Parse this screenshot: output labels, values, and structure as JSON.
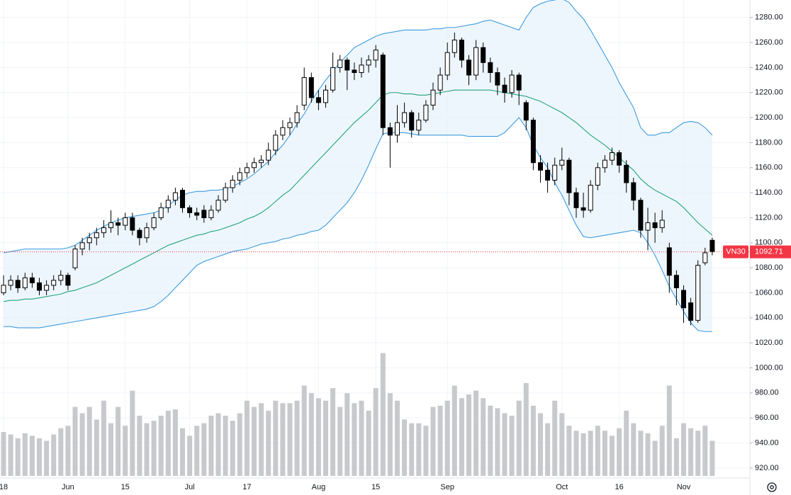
{
  "chart_data": {
    "type": "candlestick",
    "categories": [
      "18",
      null,
      null,
      null,
      null,
      null,
      null,
      null,
      null,
      "Jun",
      null,
      null,
      null,
      null,
      null,
      null,
      null,
      "15",
      null,
      null,
      null,
      null,
      null,
      null,
      null,
      null,
      "Jul",
      null,
      null,
      null,
      null,
      null,
      null,
      null,
      "17",
      null,
      null,
      null,
      null,
      null,
      null,
      null,
      null,
      null,
      "Aug",
      null,
      null,
      null,
      null,
      null,
      null,
      null,
      "15",
      null,
      null,
      null,
      null,
      null,
      null,
      null,
      null,
      null,
      "Sep",
      null,
      null,
      null,
      null,
      null,
      null,
      null,
      null,
      null,
      null,
      null,
      null,
      null,
      null,
      null,
      "Oct",
      null,
      null,
      null,
      null,
      null,
      null,
      null,
      "16",
      null,
      null,
      null,
      null,
      null,
      null,
      null,
      null,
      "Nov",
      null,
      null,
      null,
      null
    ],
    "ohlc": [
      [
        1060,
        1074,
        1058,
        1066
      ],
      [
        1066,
        1074,
        1062,
        1070
      ],
      [
        1070,
        1074,
        1060,
        1064
      ],
      [
        1064,
        1076,
        1062,
        1072
      ],
      [
        1072,
        1076,
        1064,
        1068
      ],
      [
        1068,
        1072,
        1058,
        1062
      ],
      [
        1062,
        1070,
        1058,
        1066
      ],
      [
        1066,
        1074,
        1062,
        1070
      ],
      [
        1070,
        1078,
        1066,
        1074
      ],
      [
        1074,
        1076,
        1062,
        1066
      ],
      [
        1080,
        1098,
        1078,
        1095
      ],
      [
        1095,
        1104,
        1090,
        1100
      ],
      [
        1100,
        1108,
        1094,
        1104
      ],
      [
        1104,
        1112,
        1098,
        1108
      ],
      [
        1108,
        1118,
        1104,
        1112
      ],
      [
        1112,
        1126,
        1108,
        1116
      ],
      [
        1116,
        1120,
        1106,
        1114
      ],
      [
        1114,
        1124,
        1110,
        1120
      ],
      [
        1120,
        1124,
        1106,
        1110
      ],
      [
        1110,
        1112,
        1098,
        1104
      ],
      [
        1104,
        1116,
        1100,
        1112
      ],
      [
        1112,
        1124,
        1110,
        1120
      ],
      [
        1120,
        1132,
        1118,
        1128
      ],
      [
        1128,
        1138,
        1124,
        1134
      ],
      [
        1134,
        1144,
        1130,
        1140
      ],
      [
        1142,
        1144,
        1124,
        1128
      ],
      [
        1128,
        1130,
        1120,
        1124
      ],
      [
        1124,
        1128,
        1118,
        1122
      ],
      [
        1126,
        1130,
        1116,
        1120
      ],
      [
        1120,
        1130,
        1118,
        1126
      ],
      [
        1126,
        1138,
        1124,
        1134
      ],
      [
        1134,
        1148,
        1132,
        1144
      ],
      [
        1144,
        1154,
        1140,
        1150
      ],
      [
        1150,
        1160,
        1146,
        1156
      ],
      [
        1156,
        1164,
        1152,
        1160
      ],
      [
        1160,
        1168,
        1156,
        1164
      ],
      [
        1164,
        1170,
        1160,
        1166
      ],
      [
        1166,
        1180,
        1162,
        1174
      ],
      [
        1174,
        1190,
        1170,
        1186
      ],
      [
        1186,
        1198,
        1182,
        1192
      ],
      [
        1192,
        1200,
        1186,
        1196
      ],
      [
        1196,
        1210,
        1192,
        1204
      ],
      [
        1210,
        1240,
        1206,
        1232
      ],
      [
        1232,
        1236,
        1212,
        1216
      ],
      [
        1216,
        1222,
        1206,
        1212
      ],
      [
        1212,
        1226,
        1208,
        1222
      ],
      [
        1222,
        1252,
        1220,
        1240
      ],
      [
        1240,
        1250,
        1236,
        1246
      ],
      [
        1246,
        1248,
        1222,
        1238
      ],
      [
        1238,
        1244,
        1230,
        1236
      ],
      [
        1236,
        1248,
        1232,
        1242
      ],
      [
        1242,
        1250,
        1236,
        1246
      ],
      [
        1246,
        1258,
        1240,
        1254
      ],
      [
        1250,
        1252,
        1186,
        1192
      ],
      [
        1192,
        1196,
        1160,
        1186
      ],
      [
        1186,
        1210,
        1180,
        1196
      ],
      [
        1196,
        1212,
        1192,
        1204
      ],
      [
        1204,
        1206,
        1184,
        1190
      ],
      [
        1190,
        1204,
        1186,
        1198
      ],
      [
        1198,
        1214,
        1196,
        1210
      ],
      [
        1210,
        1228,
        1206,
        1222
      ],
      [
        1222,
        1240,
        1218,
        1234
      ],
      [
        1234,
        1260,
        1230,
        1252
      ],
      [
        1252,
        1268,
        1248,
        1262
      ],
      [
        1262,
        1264,
        1240,
        1246
      ],
      [
        1246,
        1250,
        1226,
        1234
      ],
      [
        1234,
        1262,
        1230,
        1256
      ],
      [
        1256,
        1260,
        1236,
        1244
      ],
      [
        1244,
        1248,
        1228,
        1236
      ],
      [
        1236,
        1240,
        1218,
        1226
      ],
      [
        1226,
        1232,
        1212,
        1220
      ],
      [
        1220,
        1238,
        1216,
        1234
      ],
      [
        1234,
        1236,
        1210,
        1222
      ],
      [
        1212,
        1214,
        1190,
        1198
      ],
      [
        1198,
        1200,
        1158,
        1164
      ],
      [
        1164,
        1170,
        1148,
        1158
      ],
      [
        1158,
        1164,
        1140,
        1150
      ],
      [
        1150,
        1168,
        1146,
        1162
      ],
      [
        1162,
        1176,
        1158,
        1166
      ],
      [
        1166,
        1168,
        1130,
        1140
      ],
      [
        1140,
        1144,
        1120,
        1128
      ],
      [
        1128,
        1140,
        1120,
        1126
      ],
      [
        1126,
        1150,
        1124,
        1146
      ],
      [
        1146,
        1164,
        1142,
        1160
      ],
      [
        1160,
        1170,
        1156,
        1166
      ],
      [
        1166,
        1176,
        1162,
        1172
      ],
      [
        1172,
        1174,
        1156,
        1162
      ],
      [
        1162,
        1166,
        1140,
        1148
      ],
      [
        1148,
        1152,
        1126,
        1134
      ],
      [
        1134,
        1136,
        1104,
        1110
      ],
      [
        1110,
        1128,
        1094,
        1116
      ],
      [
        1116,
        1124,
        1100,
        1112
      ],
      [
        1112,
        1126,
        1108,
        1118
      ],
      [
        1096,
        1100,
        1060,
        1074
      ],
      [
        1074,
        1078,
        1050,
        1064
      ],
      [
        1062,
        1066,
        1036,
        1048
      ],
      [
        1052,
        1056,
        1034,
        1038
      ],
      [
        1038,
        1086,
        1036,
        1082
      ],
      [
        1084,
        1096,
        1082,
        1092
      ],
      [
        1102,
        1104,
        1090,
        1093
      ]
    ],
    "volume": [
      35,
      33,
      30,
      34,
      32,
      30,
      28,
      33,
      38,
      40,
      55,
      50,
      55,
      45,
      60,
      42,
      55,
      40,
      68,
      48,
      42,
      44,
      48,
      52,
      53,
      38,
      32,
      40,
      42,
      48,
      50,
      48,
      44,
      50,
      60,
      55,
      58,
      52,
      60,
      58,
      58,
      60,
      72,
      66,
      62,
      60,
      70,
      55,
      66,
      58,
      60,
      52,
      70,
      98,
      66,
      60,
      45,
      42,
      42,
      40,
      55,
      56,
      60,
      72,
      62,
      65,
      68,
      62,
      56,
      54,
      50,
      48,
      60,
      74,
      56,
      50,
      42,
      60,
      50,
      40,
      36,
      34,
      36,
      40,
      36,
      32,
      38,
      52,
      42,
      36,
      34,
      28,
      40,
      72,
      30,
      42,
      38,
      36,
      40,
      28
    ],
    "volume_lim": [
      0,
      100
    ],
    "volume_color": "#c8c9cc",
    "bollinger": {
      "upper": [
        1092,
        1093,
        1094,
        1095,
        1095,
        1095,
        1095,
        1095,
        1095,
        1096,
        1098,
        1102,
        1106,
        1110,
        1113,
        1116,
        1118,
        1120,
        1121,
        1122,
        1123,
        1124,
        1126,
        1130,
        1134,
        1138,
        1140,
        1141,
        1141,
        1142,
        1142,
        1143,
        1145,
        1148,
        1151,
        1155,
        1160,
        1165,
        1172,
        1178,
        1186,
        1195,
        1203,
        1213,
        1222,
        1230,
        1237,
        1244,
        1250,
        1256,
        1259,
        1262,
        1265,
        1267,
        1268,
        1269,
        1270,
        1270,
        1270,
        1270,
        1271,
        1271,
        1272,
        1272,
        1273,
        1274,
        1275,
        1277,
        1278,
        1276,
        1274,
        1272,
        1270,
        1280,
        1288,
        1291,
        1293,
        1294,
        1295,
        1292,
        1285,
        1279,
        1270,
        1260,
        1250,
        1240,
        1228,
        1218,
        1208,
        1192,
        1186,
        1186,
        1188,
        1188,
        1192,
        1196,
        1197,
        1196,
        1192,
        1186
      ],
      "middle": [
        1053,
        1054,
        1054,
        1055,
        1055,
        1056,
        1057,
        1058,
        1059,
        1061,
        1062,
        1064,
        1066,
        1068,
        1071,
        1074,
        1077,
        1080,
        1083,
        1086,
        1089,
        1092,
        1095,
        1098,
        1100,
        1102,
        1104,
        1106,
        1107,
        1109,
        1110,
        1112,
        1114,
        1116,
        1119,
        1121,
        1124,
        1128,
        1133,
        1138,
        1142,
        1148,
        1154,
        1160,
        1166,
        1172,
        1178,
        1184,
        1190,
        1196,
        1201,
        1206,
        1212,
        1218,
        1220,
        1220,
        1219,
        1219,
        1218,
        1218,
        1219,
        1220,
        1221,
        1222,
        1222,
        1222,
        1222,
        1222,
        1222,
        1221,
        1220,
        1219,
        1218,
        1217,
        1215,
        1213,
        1210,
        1207,
        1204,
        1200,
        1196,
        1191,
        1186,
        1182,
        1178,
        1173,
        1168,
        1163,
        1158,
        1151,
        1146,
        1142,
        1139,
        1136,
        1133,
        1128,
        1122,
        1116,
        1111,
        1106
      ],
      "lower": [
        1033,
        1033,
        1032,
        1032,
        1032,
        1032,
        1033,
        1034,
        1035,
        1036,
        1037,
        1038,
        1039,
        1040,
        1041,
        1042,
        1043,
        1044,
        1045,
        1046,
        1047,
        1049,
        1053,
        1058,
        1064,
        1070,
        1076,
        1082,
        1085,
        1087,
        1089,
        1091,
        1093,
        1094,
        1095,
        1097,
        1099,
        1100,
        1101,
        1103,
        1104,
        1106,
        1107,
        1109,
        1110,
        1114,
        1120,
        1126,
        1132,
        1140,
        1150,
        1162,
        1175,
        1187,
        1188,
        1188,
        1188,
        1187,
        1186,
        1186,
        1186,
        1186,
        1186,
        1186,
        1186,
        1185,
        1185,
        1185,
        1185,
        1185,
        1188,
        1194,
        1200,
        1192,
        1178,
        1168,
        1160,
        1148,
        1138,
        1126,
        1114,
        1105,
        1104,
        1105,
        1106,
        1107,
        1108,
        1109,
        1110,
        1108,
        1100,
        1090,
        1078,
        1065,
        1055,
        1045,
        1036,
        1030,
        1029,
        1029
      ],
      "band_color": "#3d9be0",
      "middle_color": "#22a37a",
      "fill_color": "#e6f2fc"
    },
    "up_color": "#ffffff",
    "down_color": "#000000",
    "ylim": [
      912,
      1294
    ],
    "yticks": [
      {
        "value": 1280,
        "label": "1280.00"
      },
      {
        "value": 1260,
        "label": "1260.00"
      },
      {
        "value": 1240,
        "label": "1240.00"
      },
      {
        "value": 1220,
        "label": "1220.00"
      },
      {
        "value": 1200,
        "label": "1200.00"
      },
      {
        "value": 1180,
        "label": "1180.00"
      },
      {
        "value": 1160,
        "label": "1160.00"
      },
      {
        "value": 1140,
        "label": "1140.00"
      },
      {
        "value": 1120,
        "label": "1120.00"
      },
      {
        "value": 1100,
        "label": "1100.00"
      },
      {
        "value": 1080,
        "label": "1080.00"
      },
      {
        "value": 1060,
        "label": "1060.00"
      },
      {
        "value": 1040,
        "label": "1040.00"
      },
      {
        "value": 1020,
        "label": "1020.00"
      },
      {
        "value": 1000,
        "label": "1000.00"
      },
      {
        "value": 980,
        "label": "980.00"
      },
      {
        "value": 960,
        "label": "960.00"
      },
      {
        "value": 940,
        "label": "940.00"
      },
      {
        "value": 920,
        "label": "920.00"
      }
    ],
    "grid": true,
    "last_price": {
      "name": "VN30",
      "value": 1092.71,
      "color": "#f23645"
    }
  }
}
